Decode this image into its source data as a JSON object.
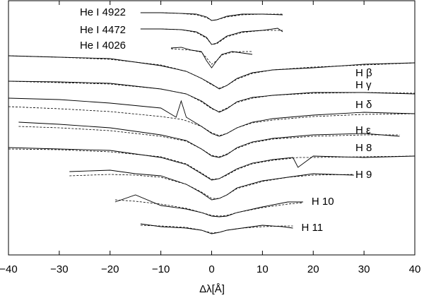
{
  "chart_data": {
    "type": "line",
    "xlabel": "Δλ[Å]",
    "xlim": [
      -40,
      40
    ],
    "xticks": [
      {
        "value": -40,
        "label": "−40"
      },
      {
        "value": -30,
        "label": "−30"
      },
      {
        "value": -20,
        "label": "−20"
      },
      {
        "value": -10,
        "label": "−10"
      },
      0,
      10,
      20,
      30,
      40
    ],
    "ylim": [
      0,
      360
    ],
    "color": "#000000",
    "series": [
      {
        "name": "He I 4922",
        "x": [
          -14,
          -10,
          -6,
          -3,
          -1,
          0,
          1,
          3,
          6,
          10,
          14
        ],
        "values": [
          343,
          343,
          342,
          341,
          337,
          332,
          333,
          338,
          341,
          341,
          340
        ],
        "model": [
          343,
          343,
          342,
          340,
          336,
          332,
          333,
          337,
          340,
          341,
          341
        ]
      },
      {
        "name": "He I 4472",
        "x": [
          -14,
          -10,
          -6,
          -3,
          -1,
          0,
          1,
          3,
          6,
          10,
          13,
          14
        ],
        "values": [
          320,
          320,
          319,
          316,
          308,
          298,
          300,
          310,
          316,
          318,
          321,
          316
        ],
        "model": [
          320,
          320,
          319,
          315,
          307,
          298,
          299,
          309,
          315,
          318,
          318,
          318
        ]
      },
      {
        "name": "He I 4026",
        "x": [
          -8,
          -6,
          -4,
          -2,
          -1,
          0,
          1,
          2,
          4,
          6,
          8
        ],
        "values": [
          293,
          294,
          290,
          288,
          275,
          265,
          275,
          284,
          288,
          286,
          284
        ],
        "model": [
          292,
          291,
          290,
          287,
          279,
          270,
          275,
          283,
          287,
          288,
          288
        ]
      },
      {
        "name": "H β",
        "x": [
          -40,
          -30,
          -20,
          -10,
          -5,
          -2,
          0,
          1.5,
          3,
          5,
          8,
          12,
          20,
          30,
          40
        ],
        "values": [
          282,
          280,
          278,
          268,
          260,
          250,
          242,
          235,
          240,
          250,
          258,
          262,
          265,
          270,
          272
        ],
        "model": [
          282,
          280,
          277,
          269,
          260,
          250,
          241,
          236,
          240,
          249,
          257,
          262,
          266,
          269,
          272
        ]
      },
      {
        "name": "H γ",
        "x": [
          -40,
          -30,
          -20,
          -10,
          -5,
          -2,
          0,
          1.5,
          3,
          5,
          8,
          12,
          20,
          30,
          40
        ],
        "values": [
          246,
          245,
          243,
          235,
          228,
          218,
          208,
          202,
          207,
          217,
          223,
          226,
          230,
          230,
          228
        ],
        "model": [
          246,
          244,
          242,
          235,
          228,
          217,
          207,
          203,
          208,
          216,
          222,
          226,
          229,
          230,
          229
        ]
      },
      {
        "name": "H δ",
        "x": [
          -40,
          -30,
          -20,
          -10,
          -7,
          -6,
          -5,
          -2,
          0,
          1.5,
          3,
          5,
          8,
          12,
          20,
          30,
          40
        ],
        "values": [
          222,
          220,
          215,
          208,
          195,
          218,
          195,
          182,
          172,
          168,
          172,
          180,
          188,
          193,
          198,
          202,
          200
        ],
        "model": [
          210,
          207,
          203,
          196,
          193,
          192,
          190,
          182,
          173,
          169,
          172,
          180,
          187,
          191,
          196,
          199,
          200
        ]
      },
      {
        "name": "H ε",
        "x": [
          -38,
          -30,
          -20,
          -10,
          -5,
          -2,
          0,
          1.5,
          3,
          5,
          8,
          12,
          20,
          30,
          37
        ],
        "values": [
          188,
          185,
          180,
          170,
          162,
          150,
          140,
          138,
          142,
          152,
          160,
          165,
          170,
          172,
          168
        ],
        "model": [
          182,
          180,
          176,
          168,
          161,
          150,
          141,
          139,
          143,
          151,
          159,
          164,
          168,
          170,
          170
        ]
      },
      {
        "name": "H 8",
        "x": [
          -40,
          -30,
          -20,
          -10,
          -5,
          -2,
          0,
          1.5,
          3,
          5,
          8,
          12,
          16,
          17,
          20,
          30,
          40
        ],
        "values": [
          152,
          150,
          148,
          138,
          128,
          115,
          106,
          108,
          114,
          122,
          130,
          135,
          138,
          124,
          140,
          138,
          140
        ],
        "model": [
          150,
          149,
          146,
          139,
          129,
          116,
          107,
          108,
          113,
          121,
          129,
          134,
          137,
          138,
          138,
          139,
          140
        ]
      },
      {
        "name": "H 9",
        "x": [
          -28,
          -20,
          -15,
          -10,
          -5,
          -2,
          0,
          1.5,
          3,
          5,
          10,
          15,
          20,
          28
        ],
        "values": [
          118,
          120,
          115,
          112,
          100,
          88,
          78,
          80,
          85,
          95,
          105,
          110,
          115,
          113
        ],
        "model": [
          112,
          114,
          113,
          110,
          100,
          89,
          80,
          80,
          85,
          94,
          104,
          110,
          113,
          114
        ]
      },
      {
        "name": "H 10",
        "x": [
          -19,
          -15,
          -10,
          -5,
          -2,
          0,
          1.5,
          3,
          5,
          10,
          15,
          18
        ],
        "values": [
          75,
          85,
          70,
          65,
          60,
          55,
          54,
          55,
          60,
          68,
          75,
          75
        ],
        "model": [
          78,
          76,
          72,
          66,
          60,
          56,
          55,
          56,
          60,
          67,
          72,
          74
        ]
      },
      {
        "name": "H 11",
        "x": [
          -14,
          -10,
          -5,
          -2,
          0,
          1.5,
          3,
          6,
          10,
          14,
          16
        ],
        "values": [
          44,
          40,
          38,
          35,
          30,
          32,
          35,
          38,
          42,
          40,
          38
        ],
        "model": [
          42,
          41,
          39,
          35,
          31,
          32,
          35,
          38,
          40,
          41,
          41
        ]
      }
    ]
  }
}
